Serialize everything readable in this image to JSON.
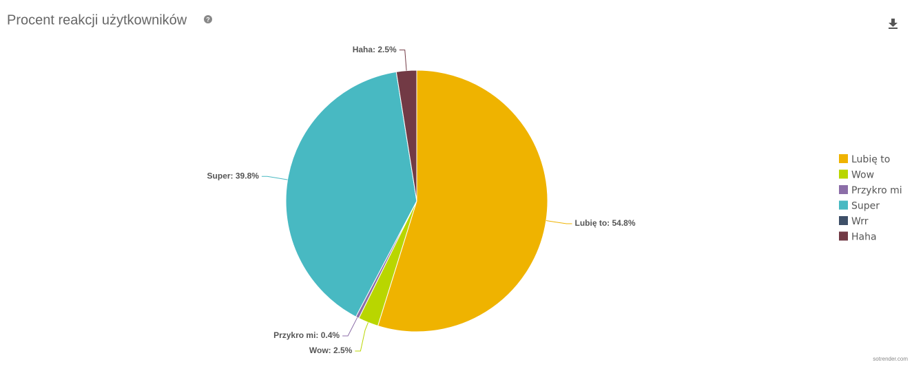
{
  "chart_data": {
    "type": "pie",
    "title": "Procent reakcji użytkowników",
    "categories": [
      "Lubię to",
      "Wow",
      "Przykro mi",
      "Super",
      "Wrr",
      "Haha"
    ],
    "values": [
      54.8,
      2.5,
      0.4,
      39.8,
      0,
      2.5
    ],
    "value_labels": [
      "Lubię to: 54.8%",
      "Wow: 2.5%",
      "Przykro mi: 0.4%",
      "Super: 39.8%",
      null,
      "Haha: 2.5%"
    ],
    "colors": [
      "#efb300",
      "#b9d600",
      "#8c6ea8",
      "#48b9c2",
      "#3e5068",
      "#723a45"
    ],
    "legend": "right",
    "credit": "sotrender.com"
  }
}
